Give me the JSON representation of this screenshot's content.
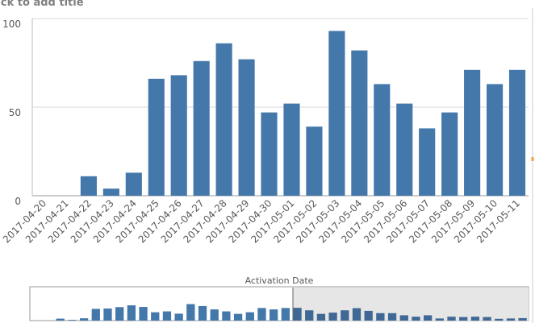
{
  "chart_data": {
    "type": "bar",
    "title": "lick to add title",
    "categories": [
      "2017-04-20",
      "2017-04-21",
      "2017-04-22",
      "2017-04-23",
      "2017-04-24",
      "2017-04-25",
      "2017-04-26",
      "2017-04-27",
      "2017-04-28",
      "2017-04-29",
      "2017-04-30",
      "2017-05-01",
      "2017-05-02",
      "2017-05-03",
      "2017-05-04",
      "2017-05-05",
      "2017-05-06",
      "2017-05-07",
      "2017-05-08",
      "2017-05-09",
      "2017-05-10",
      "2017-05-11"
    ],
    "values": [
      0,
      0,
      11,
      4,
      13,
      66,
      68,
      76,
      86,
      77,
      47,
      52,
      39,
      93,
      82,
      63,
      52,
      38,
      47,
      71,
      63,
      71
    ],
    "color": "#4477aa",
    "ylim": [
      0,
      100
    ],
    "yticks": [
      0,
      50,
      100
    ],
    "grid": true,
    "navigator": {
      "title": "Activation Date",
      "color": "#4477aa",
      "shaded_color": "#3f6895",
      "values": [
        0,
        0,
        11,
        4,
        13,
        66,
        68,
        76,
        86,
        77,
        47,
        52,
        39,
        93,
        82,
        63,
        52,
        38,
        47,
        71,
        63,
        71,
        72,
        58,
        38,
        45,
        58,
        70,
        55,
        42,
        42,
        30,
        22,
        30,
        12,
        22,
        20,
        22,
        20,
        10,
        12,
        14
      ]
    }
  }
}
